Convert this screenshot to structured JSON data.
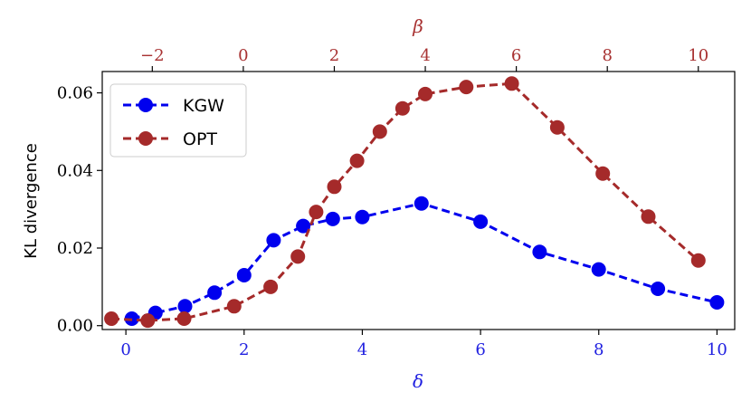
{
  "chart_data": {
    "type": "line",
    "ylabel": "KL divergence",
    "bottom_axis": {
      "label": "δ",
      "color": "#1f1fe0",
      "range": [
        -0.4,
        10.3
      ],
      "ticks": [
        0,
        2,
        4,
        6,
        8,
        10
      ],
      "tick_labels": [
        "0",
        "2",
        "4",
        "6",
        "8",
        "10"
      ]
    },
    "top_axis": {
      "label": "β",
      "color": "#a83232",
      "range": [
        -3.1,
        10.8
      ],
      "ticks": [
        -2,
        0,
        2,
        4,
        6,
        8,
        10
      ],
      "tick_labels": [
        "−2",
        "0",
        "2",
        "4",
        "6",
        "8",
        "10"
      ]
    },
    "y_axis": {
      "range": [
        -0.001,
        0.0655
      ],
      "ticks": [
        0.0,
        0.02,
        0.04,
        0.06
      ],
      "tick_labels": [
        "0.00",
        "0.02",
        "0.04",
        "0.06"
      ]
    },
    "legend": {
      "placement": "top-left"
    },
    "series": [
      {
        "name": "KGW",
        "color": "#0000ee",
        "axis": "bottom",
        "x": [
          0.1,
          0.5,
          1.0,
          1.5,
          2.0,
          2.5,
          3.0,
          3.5,
          4.0,
          5.0,
          6.0,
          7.0,
          8.0,
          9.0,
          10.0
        ],
        "y": [
          0.0018,
          0.0033,
          0.005,
          0.0085,
          0.013,
          0.022,
          0.0257,
          0.0275,
          0.028,
          0.0315,
          0.0268,
          0.019,
          0.0145,
          0.0095,
          0.006
        ]
      },
      {
        "name": "OPT",
        "color": "#a52a2a",
        "axis": "top",
        "x": [
          -2.9,
          -2.1,
          -1.3,
          -0.2,
          0.6,
          1.2,
          1.6,
          2.0,
          2.5,
          3.0,
          3.5,
          4.0,
          4.9,
          5.9,
          6.9,
          7.9,
          8.9,
          10.0
        ],
        "y": [
          0.0018,
          0.0013,
          0.0018,
          0.005,
          0.01,
          0.0178,
          0.0293,
          0.0358,
          0.0425,
          0.05,
          0.056,
          0.0597,
          0.0615,
          0.0624,
          0.0511,
          0.0392,
          0.0281,
          0.0168
        ]
      }
    ]
  }
}
